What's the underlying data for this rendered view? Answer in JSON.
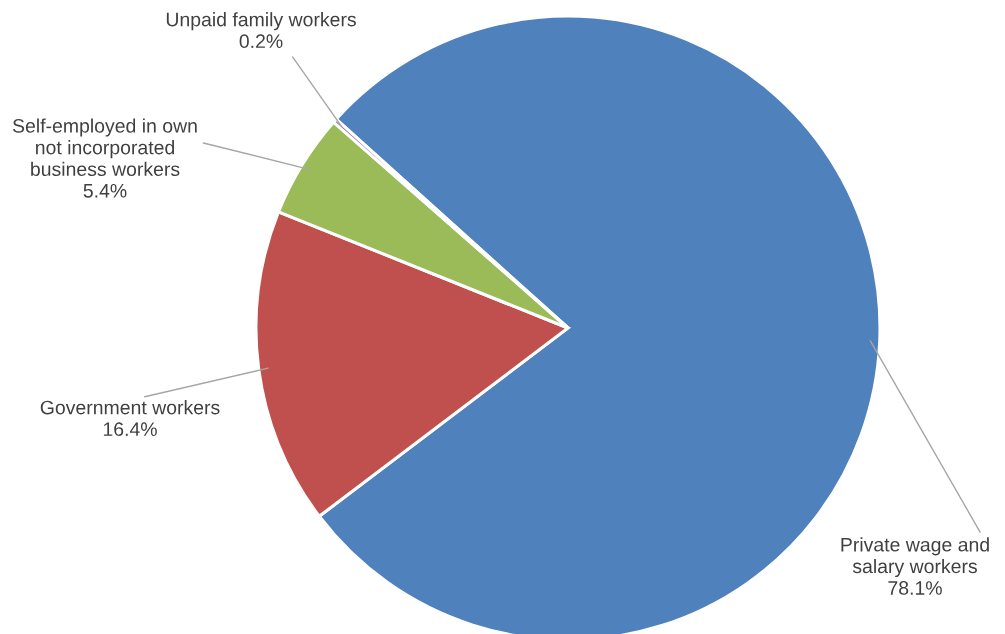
{
  "chart_data": {
    "type": "pie",
    "categories": [
      "Private wage and\nsalary workers",
      "Government workers",
      "Self-employed in own\nnot incorporated\nbusiness workers",
      "Unpaid family workers"
    ],
    "values": [
      78.1,
      16.4,
      5.4,
      0.2
    ],
    "colors": [
      "#4f81bd",
      "#c0504d",
      "#9bbb59",
      "#8064a2"
    ],
    "value_labels": [
      "78.1%",
      "16.4%",
      "5.4%",
      "0.2%"
    ],
    "legend": false
  }
}
